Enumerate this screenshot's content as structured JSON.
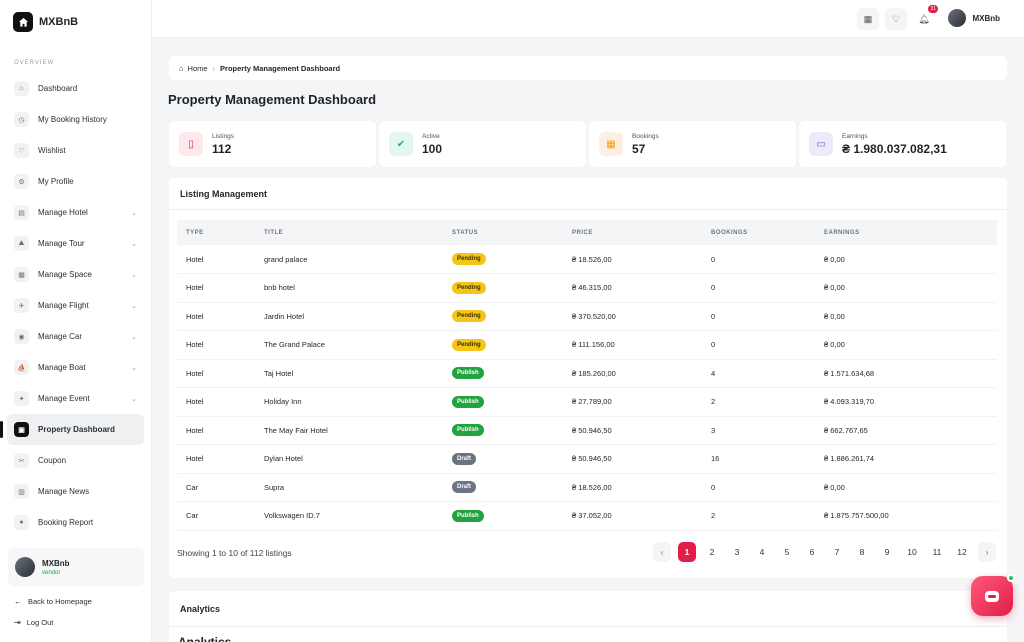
{
  "app": {
    "name": "MXBnB"
  },
  "sidebar": {
    "section": "OVERVIEW",
    "items": [
      {
        "label": "Dashboard",
        "icon": "home-icon",
        "glyph": "⌂",
        "chevron": false
      },
      {
        "label": "My Booking History",
        "icon": "clock-icon",
        "glyph": "◷",
        "chevron": false
      },
      {
        "label": "Wishlist",
        "icon": "heart-icon",
        "glyph": "♡",
        "chevron": false
      },
      {
        "label": "My Profile",
        "icon": "gear-icon",
        "glyph": "⚙",
        "chevron": false
      },
      {
        "label": "Manage Hotel",
        "icon": "building-icon",
        "glyph": "▤",
        "chevron": true
      },
      {
        "label": "Manage Tour",
        "icon": "tour-icon",
        "glyph": "⛰",
        "chevron": true
      },
      {
        "label": "Manage Space",
        "icon": "space-icon",
        "glyph": "▦",
        "chevron": true
      },
      {
        "label": "Manage Flight",
        "icon": "plane-icon",
        "glyph": "✈",
        "chevron": true
      },
      {
        "label": "Manage Car",
        "icon": "car-icon",
        "glyph": "◉",
        "chevron": true
      },
      {
        "label": "Manage Boat",
        "icon": "boat-icon",
        "glyph": "⛵",
        "chevron": true
      },
      {
        "label": "Manage Event",
        "icon": "ticket-icon",
        "glyph": "✦",
        "chevron": true
      },
      {
        "label": "Property Dashboard",
        "icon": "dashboard-icon",
        "glyph": "▣",
        "chevron": false,
        "active": true
      },
      {
        "label": "Coupon",
        "icon": "coupon-icon",
        "glyph": "✂",
        "chevron": false
      },
      {
        "label": "Manage News",
        "icon": "news-icon",
        "glyph": "▥",
        "chevron": false
      },
      {
        "label": "Booking Report",
        "icon": "report-icon",
        "glyph": "●",
        "chevron": false
      }
    ],
    "user": {
      "name": "MXBnb",
      "role": "vendor"
    },
    "back_link": "Back to Homepage",
    "logout": "Log Out"
  },
  "topbar": {
    "notification_count": "31",
    "user_name": "MXBnb"
  },
  "breadcrumb": {
    "home": "Home",
    "current": "Property Management Dashboard"
  },
  "page_title": "Property Management Dashboard",
  "stats": [
    {
      "label": "Listings",
      "value": "112",
      "icon": "tablet-icon",
      "glyph": "▯",
      "bg": "#fde8ec",
      "fg": "#e11d48"
    },
    {
      "label": "Active",
      "value": "100",
      "icon": "check-icon",
      "glyph": "✔",
      "bg": "#e3f6f1",
      "fg": "#10b981"
    },
    {
      "label": "Bookings",
      "value": "57",
      "icon": "calendar-icon",
      "glyph": "▦",
      "bg": "#fdf0e3",
      "fg": "#f59e0b"
    },
    {
      "label": "Earnings",
      "value": "₴ 1.980.037.082,31",
      "icon": "money-icon",
      "glyph": "▭",
      "bg": "#ecebfb",
      "fg": "#6366f1"
    }
  ],
  "listing": {
    "title": "Listing Management",
    "columns": [
      "TYPE",
      "TITLE",
      "STATUS",
      "PRICE",
      "BOOKINGS",
      "EARNINGS"
    ],
    "rows": [
      [
        "Hotel",
        "grand palace",
        "Pending",
        "₴ 18.526,00",
        "0",
        "₴ 0,00"
      ],
      [
        "Hotel",
        "bnb hotel",
        "Pending",
        "₴ 46.315,00",
        "0",
        "₴ 0,00"
      ],
      [
        "Hotel",
        "Jardin Hotel",
        "Pending",
        "₴ 370.520,00",
        "0",
        "₴ 0,00"
      ],
      [
        "Hotel",
        "The Grand Palace",
        "Pending",
        "₴ 111.156,00",
        "0",
        "₴ 0,00"
      ],
      [
        "Hotel",
        "Taj Hotel",
        "Publish",
        "₴ 185.260,00",
        "4",
        "₴ 1.571.634,68"
      ],
      [
        "Hotel",
        "Holiday Inn",
        "Publish",
        "₴ 27.789,00",
        "2",
        "₴ 4.093.319,70"
      ],
      [
        "Hotel",
        "The May Fair Hotel",
        "Publish",
        "₴ 50.946,50",
        "3",
        "₴ 662.767,65"
      ],
      [
        "Hotel",
        "Dylan Hotel",
        "Draft",
        "₴ 50.946,50",
        "16",
        "₴ 1.886.261,74"
      ],
      [
        "Car",
        "Supra",
        "Draft",
        "₴ 18.526,00",
        "0",
        "₴ 0,00"
      ],
      [
        "Car",
        "Volkswagen ID.7",
        "Publish",
        "₴ 37.052,00",
        "2",
        "₴ 1.875.757.500,00"
      ]
    ],
    "pagination_info": "Showing 1 to 10 of 112 listings",
    "pages": [
      "1",
      "2",
      "3",
      "4",
      "5",
      "6",
      "7",
      "8",
      "9",
      "10",
      "11",
      "12"
    ],
    "current_page": "1",
    "prev": "‹",
    "next": "›"
  },
  "analytics": {
    "title": "Analytics",
    "subtitle": "Analytics"
  }
}
